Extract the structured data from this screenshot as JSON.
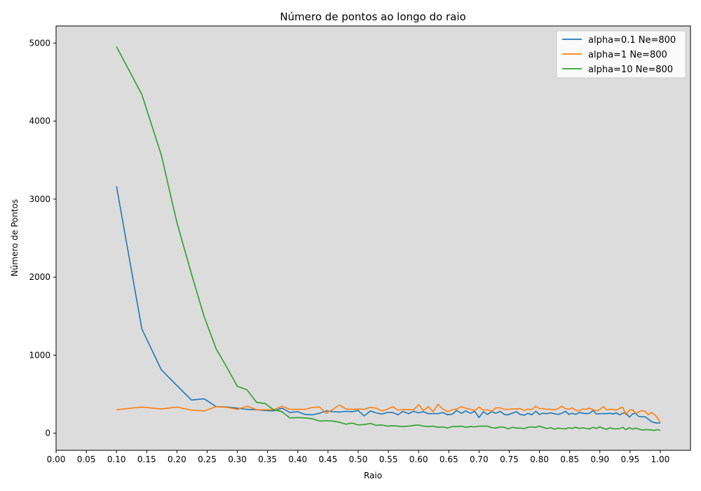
{
  "chart_data": {
    "type": "line",
    "title": "Número de pontos ao longo do raio",
    "xlabel": "Raio",
    "ylabel": "Número de Pontos",
    "xlim": [
      0.0,
      1.05
    ],
    "ylim": [
      -220,
      5220
    ],
    "x_ticks": [
      "0.00",
      "0.05",
      "0.10",
      "0.15",
      "0.20",
      "0.25",
      "0.30",
      "0.35",
      "0.40",
      "0.45",
      "0.50",
      "0.55",
      "0.60",
      "0.65",
      "0.70",
      "0.75",
      "0.80",
      "0.85",
      "0.90",
      "0.95",
      "1.00"
    ],
    "y_ticks": [
      "0",
      "1000",
      "2000",
      "3000",
      "4000",
      "5000"
    ],
    "grid": false,
    "legend_position": "top-right",
    "background": "#dcdcdc",
    "series": [
      {
        "name": "alpha=0.1 Ne=800",
        "color": "#1f77b4",
        "x": [
          0.1,
          0.142,
          0.174,
          0.2,
          0.224,
          0.245,
          0.265,
          0.283,
          0.3,
          0.316,
          0.332,
          0.346,
          0.36,
          0.374,
          0.387,
          0.4,
          0.412,
          0.424,
          0.436,
          0.447,
          0.458,
          0.469,
          0.48,
          0.49,
          0.5,
          0.51,
          0.52,
          0.53,
          0.539,
          0.548,
          0.557,
          0.566,
          0.574,
          0.583,
          0.592,
          0.6,
          0.608,
          0.616,
          0.624,
          0.632,
          0.64,
          0.648,
          0.656,
          0.663,
          0.671,
          0.678,
          0.686,
          0.693,
          0.7,
          0.707,
          0.714,
          0.721,
          0.728,
          0.735,
          0.742,
          0.748,
          0.755,
          0.762,
          0.768,
          0.775,
          0.781,
          0.787,
          0.794,
          0.8,
          0.806,
          0.812,
          0.819,
          0.825,
          0.831,
          0.837,
          0.843,
          0.849,
          0.854,
          0.86,
          0.866,
          0.872,
          0.877,
          0.883,
          0.889,
          0.894,
          0.9,
          0.906,
          0.911,
          0.917,
          0.922,
          0.927,
          0.933,
          0.938,
          0.943,
          0.949,
          0.954,
          0.959,
          0.964,
          0.97,
          0.975,
          0.98,
          0.985,
          0.99,
          0.995,
          1.0
        ],
        "y": [
          3165,
          1335,
          815,
          610,
          425,
          440,
          340,
          335,
          320,
          305,
          300,
          290,
          285,
          320,
          265,
          275,
          240,
          235,
          255,
          285,
          275,
          270,
          280,
          275,
          290,
          220,
          285,
          260,
          245,
          265,
          265,
          235,
          280,
          250,
          280,
          260,
          275,
          250,
          250,
          250,
          265,
          235,
          245,
          290,
          255,
          285,
          255,
          280,
          200,
          275,
          240,
          275,
          255,
          280,
          240,
          235,
          255,
          275,
          240,
          230,
          255,
          235,
          280,
          240,
          255,
          250,
          260,
          250,
          240,
          255,
          280,
          240,
          255,
          240,
          265,
          255,
          250,
          255,
          290,
          245,
          250,
          250,
          250,
          255,
          245,
          260,
          235,
          255,
          260,
          205,
          245,
          255,
          215,
          210,
          210,
          180,
          150,
          135,
          130,
          130
        ]
      },
      {
        "name": "alpha=1 Ne=800",
        "color": "#ff7f0e",
        "x": [
          0.1,
          0.142,
          0.174,
          0.2,
          0.224,
          0.245,
          0.265,
          0.283,
          0.3,
          0.316,
          0.332,
          0.346,
          0.36,
          0.374,
          0.387,
          0.4,
          0.412,
          0.424,
          0.436,
          0.447,
          0.458,
          0.469,
          0.48,
          0.49,
          0.5,
          0.51,
          0.52,
          0.53,
          0.539,
          0.548,
          0.557,
          0.566,
          0.574,
          0.583,
          0.592,
          0.6,
          0.608,
          0.616,
          0.624,
          0.632,
          0.64,
          0.648,
          0.656,
          0.663,
          0.671,
          0.678,
          0.686,
          0.693,
          0.7,
          0.707,
          0.714,
          0.721,
          0.728,
          0.735,
          0.742,
          0.748,
          0.755,
          0.762,
          0.768,
          0.775,
          0.781,
          0.787,
          0.794,
          0.8,
          0.806,
          0.812,
          0.819,
          0.825,
          0.831,
          0.837,
          0.843,
          0.849,
          0.854,
          0.86,
          0.866,
          0.872,
          0.877,
          0.883,
          0.889,
          0.894,
          0.9,
          0.906,
          0.911,
          0.917,
          0.922,
          0.927,
          0.933,
          0.938,
          0.943,
          0.949,
          0.954,
          0.959,
          0.964,
          0.97,
          0.975,
          0.98,
          0.985,
          0.99,
          0.995,
          1.0
        ],
        "y": [
          300,
          335,
          310,
          335,
          295,
          285,
          340,
          330,
          305,
          345,
          300,
          300,
          300,
          345,
          305,
          305,
          305,
          330,
          335,
          255,
          305,
          360,
          310,
          305,
          310,
          305,
          330,
          320,
          285,
          305,
          340,
          295,
          305,
          300,
          300,
          365,
          290,
          340,
          275,
          370,
          310,
          275,
          300,
          310,
          340,
          320,
          305,
          290,
          335,
          295,
          300,
          280,
          325,
          325,
          305,
          305,
          310,
          310,
          315,
          290,
          310,
          300,
          345,
          315,
          315,
          305,
          305,
          300,
          315,
          345,
          315,
          305,
          325,
          295,
          285,
          310,
          305,
          320,
          300,
          285,
          305,
          340,
          300,
          305,
          305,
          295,
          320,
          330,
          235,
          295,
          300,
          255,
          270,
          290,
          280,
          235,
          265,
          240,
          200,
          140
        ]
      },
      {
        "name": "alpha=10 Ne=800",
        "color": "#2ca02c",
        "x": [
          0.1,
          0.142,
          0.174,
          0.2,
          0.224,
          0.245,
          0.265,
          0.283,
          0.3,
          0.316,
          0.332,
          0.346,
          0.36,
          0.374,
          0.387,
          0.4,
          0.412,
          0.424,
          0.436,
          0.447,
          0.458,
          0.469,
          0.48,
          0.49,
          0.5,
          0.51,
          0.52,
          0.53,
          0.539,
          0.548,
          0.557,
          0.566,
          0.574,
          0.583,
          0.592,
          0.6,
          0.608,
          0.616,
          0.624,
          0.632,
          0.64,
          0.648,
          0.656,
          0.663,
          0.671,
          0.678,
          0.686,
          0.693,
          0.7,
          0.707,
          0.714,
          0.721,
          0.728,
          0.735,
          0.742,
          0.748,
          0.755,
          0.762,
          0.768,
          0.775,
          0.781,
          0.787,
          0.794,
          0.8,
          0.806,
          0.812,
          0.819,
          0.825,
          0.831,
          0.837,
          0.843,
          0.849,
          0.854,
          0.86,
          0.866,
          0.872,
          0.877,
          0.883,
          0.889,
          0.894,
          0.9,
          0.906,
          0.911,
          0.917,
          0.922,
          0.927,
          0.933,
          0.938,
          0.943,
          0.949,
          0.954,
          0.959,
          0.964,
          0.97,
          0.975,
          0.98,
          0.985,
          0.99,
          0.995,
          1.0
        ],
        "y": [
          4955,
          4340,
          3570,
          2700,
          2045,
          1495,
          1080,
          840,
          600,
          555,
          395,
          380,
          300,
          275,
          195,
          200,
          195,
          185,
          155,
          160,
          155,
          140,
          115,
          130,
          105,
          110,
          125,
          100,
          105,
          90,
          95,
          90,
          85,
          90,
          100,
          105,
          90,
          85,
          90,
          75,
          80,
          65,
          85,
          85,
          90,
          75,
          85,
          80,
          90,
          90,
          90,
          70,
          65,
          80,
          75,
          55,
          75,
          65,
          65,
          60,
          75,
          80,
          75,
          90,
          75,
          60,
          70,
          50,
          65,
          60,
          55,
          70,
          60,
          75,
          60,
          70,
          60,
          55,
          75,
          60,
          80,
          60,
          50,
          70,
          55,
          55,
          60,
          75,
          45,
          70,
          50,
          65,
          55,
          40,
          45,
          45,
          40,
          35,
          45,
          35
        ]
      }
    ]
  }
}
